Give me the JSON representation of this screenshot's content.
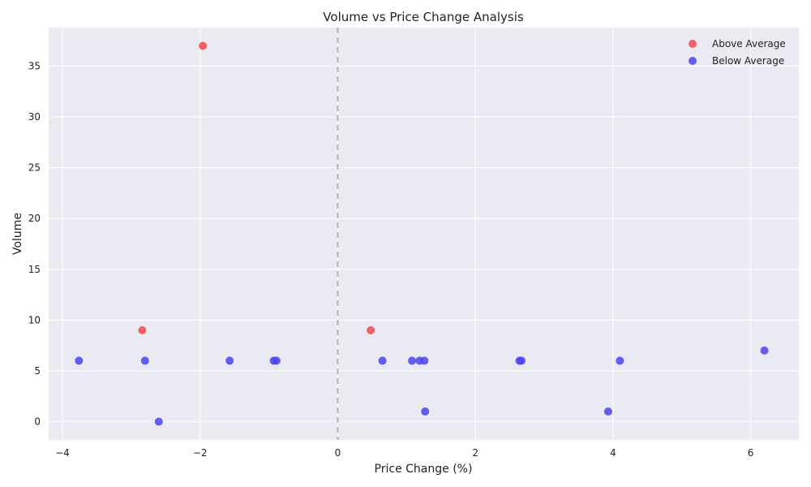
{
  "chart_data": {
    "type": "scatter",
    "title": "Volume vs Price Change Analysis",
    "xlabel": "Price Change (%)",
    "ylabel": "Volume",
    "xlim": [
      -4.2,
      6.7
    ],
    "ylim": [
      -1.8,
      38.8
    ],
    "xticks": [
      -4,
      -2,
      0,
      2,
      4,
      6
    ],
    "yticks": [
      0,
      5,
      10,
      15,
      20,
      25,
      30,
      35
    ],
    "grid": true,
    "reference_line": {
      "x": 0,
      "style": "dashed"
    },
    "legend_position": "top-right",
    "series": [
      {
        "name": "Above Average",
        "color": "#f0484f",
        "points": [
          {
            "x": -1.96,
            "y": 37
          },
          {
            "x": -2.84,
            "y": 9
          },
          {
            "x": 0.48,
            "y": 9
          }
        ]
      },
      {
        "name": "Below Average",
        "color": "#4b44ee",
        "points": [
          {
            "x": -3.76,
            "y": 6
          },
          {
            "x": -2.8,
            "y": 6
          },
          {
            "x": -2.6,
            "y": 0
          },
          {
            "x": -1.57,
            "y": 6
          },
          {
            "x": -0.93,
            "y": 6
          },
          {
            "x": -0.89,
            "y": 6
          },
          {
            "x": 0.65,
            "y": 6
          },
          {
            "x": 1.08,
            "y": 6
          },
          {
            "x": 1.19,
            "y": 6
          },
          {
            "x": 1.26,
            "y": 6
          },
          {
            "x": 1.27,
            "y": 1
          },
          {
            "x": 2.64,
            "y": 6
          },
          {
            "x": 2.67,
            "y": 6
          },
          {
            "x": 3.93,
            "y": 1
          },
          {
            "x": 4.1,
            "y": 6
          },
          {
            "x": 6.2,
            "y": 7
          }
        ]
      }
    ]
  }
}
